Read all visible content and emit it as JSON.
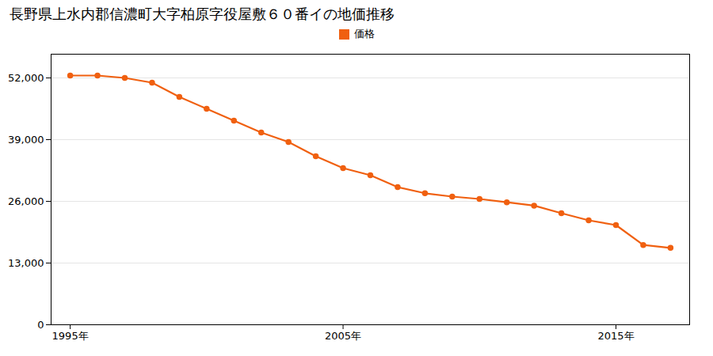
{
  "chart_data": {
    "type": "line",
    "title": "長野県上水内郡信濃町大字柏原字役屋敷６０番イの地価推移",
    "x": [
      1995,
      1996,
      1997,
      1998,
      1999,
      2000,
      2001,
      2002,
      2003,
      2004,
      2005,
      2006,
      2007,
      2008,
      2009,
      2010,
      2011,
      2012,
      2013,
      2014,
      2015,
      2016,
      2017
    ],
    "series": [
      {
        "name": "価格",
        "color": "#f06010",
        "marker": "circle",
        "values": [
          52500,
          52500,
          52000,
          51000,
          48000,
          45500,
          43000,
          40500,
          38500,
          35500,
          33000,
          31500,
          29000,
          27700,
          27000,
          26500,
          25800,
          25100,
          23500,
          22000,
          21000,
          16800,
          16200
        ]
      }
    ],
    "xlim": [
      1994.3,
      2017.7
    ],
    "xticks": [
      {
        "value": 1995,
        "label": "1995年"
      },
      {
        "value": 2005,
        "label": "2005年"
      },
      {
        "value": 2015,
        "label": "2015年"
      }
    ],
    "ylim": [
      0,
      57000
    ],
    "yticks": [
      0,
      {
        "value": 13000,
        "label": "13,000"
      },
      {
        "value": 26000,
        "label": "26,000"
      },
      {
        "value": 39000,
        "label": "39,000"
      },
      {
        "value": 52000,
        "label": "52,000"
      }
    ],
    "grid": true,
    "legend": "top"
  }
}
